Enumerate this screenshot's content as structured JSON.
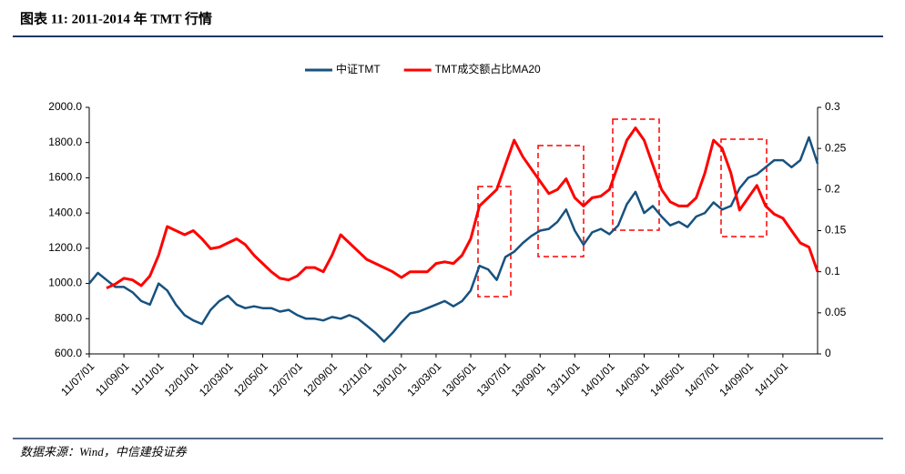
{
  "chart_data": {
    "type": "line",
    "title": "图表 11: 2011-2014 年 TMT 行情",
    "source": "数据来源：Wind，中信建投证券",
    "categories": [
      "11/07/01",
      null,
      null,
      null,
      "11/09/01",
      null,
      null,
      null,
      "11/11/01",
      null,
      null,
      null,
      "12/01/01",
      null,
      null,
      null,
      "12/03/01",
      null,
      null,
      null,
      "12/05/01",
      null,
      null,
      null,
      "12/07/01",
      null,
      null,
      null,
      "12/09/01",
      null,
      null,
      null,
      "12/11/01",
      null,
      null,
      null,
      "13/01/01",
      null,
      null,
      null,
      "13/03/01",
      null,
      null,
      null,
      "13/05/01",
      null,
      null,
      null,
      "13/07/01",
      null,
      null,
      null,
      "13/09/01",
      null,
      null,
      null,
      "13/11/01",
      null,
      null,
      null,
      "14/01/01",
      null,
      null,
      null,
      "14/03/01",
      null,
      null,
      null,
      "14/05/01",
      null,
      null,
      null,
      "14/07/01",
      null,
      null,
      null,
      "14/09/01",
      null,
      null,
      null,
      "14/11/01",
      null,
      null,
      null,
      null
    ],
    "series": [
      {
        "name": "中证TMT",
        "color": "#17527f",
        "axis": "y",
        "values": [
          1000,
          1060,
          1020,
          980,
          980,
          950,
          900,
          880,
          1000,
          960,
          880,
          820,
          790,
          770,
          850,
          900,
          930,
          880,
          860,
          870,
          860,
          860,
          840,
          850,
          820,
          800,
          800,
          790,
          810,
          800,
          820,
          800,
          760,
          720,
          670,
          720,
          780,
          830,
          840,
          860,
          880,
          900,
          870,
          900,
          960,
          1100,
          1080,
          1020,
          1150,
          1180,
          1230,
          1270,
          1300,
          1310,
          1350,
          1420,
          1300,
          1220,
          1290,
          1310,
          1280,
          1330,
          1450,
          1520,
          1400,
          1440,
          1380,
          1330,
          1350,
          1320,
          1380,
          1400,
          1460,
          1420,
          1440,
          1540,
          1600,
          1620,
          1660,
          1700,
          1700,
          1660,
          1700,
          1830,
          1680
        ]
      },
      {
        "name": "TMT成交额占比MA20",
        "color": "#ff0000",
        "axis": "y2",
        "values": [
          null,
          null,
          0.08,
          0.085,
          0.092,
          0.09,
          0.083,
          0.095,
          0.12,
          0.155,
          0.15,
          0.145,
          0.15,
          0.14,
          0.128,
          0.13,
          0.135,
          0.14,
          0.133,
          0.12,
          0.11,
          0.1,
          0.092,
          0.09,
          0.095,
          0.105,
          0.105,
          0.1,
          0.12,
          0.145,
          0.135,
          0.125,
          0.115,
          0.11,
          0.105,
          0.1,
          0.093,
          0.1,
          0.1,
          0.1,
          0.11,
          0.112,
          0.11,
          0.12,
          0.14,
          0.18,
          0.19,
          0.2,
          0.23,
          0.26,
          0.24,
          0.225,
          0.21,
          0.195,
          0.2,
          0.213,
          0.19,
          0.18,
          0.19,
          0.192,
          0.2,
          0.23,
          0.26,
          0.275,
          0.26,
          0.23,
          0.2,
          0.185,
          0.18,
          0.18,
          0.19,
          0.22,
          0.26,
          0.25,
          0.22,
          0.175,
          0.19,
          0.205,
          0.18,
          0.17,
          0.165,
          0.15,
          0.135,
          0.13,
          0.1
        ]
      }
    ],
    "ylim": [
      600,
      2000
    ],
    "yticks": [
      {
        "value": 600,
        "label": "600.0"
      },
      {
        "value": 800,
        "label": "800.0"
      },
      {
        "value": 1000,
        "label": "1000.0"
      },
      {
        "value": 1200,
        "label": "1200.0"
      },
      {
        "value": 1400,
        "label": "1400.0"
      },
      {
        "value": 1600,
        "label": "1600.0"
      },
      {
        "value": 1800,
        "label": "1800.0"
      },
      {
        "value": 2000,
        "label": "2000.0"
      }
    ],
    "y2lim": [
      0,
      0.3
    ],
    "y2ticks": [
      0,
      0.05,
      0.1,
      0.15,
      0.2,
      0.25,
      0.3
    ],
    "legend": "top"
  }
}
